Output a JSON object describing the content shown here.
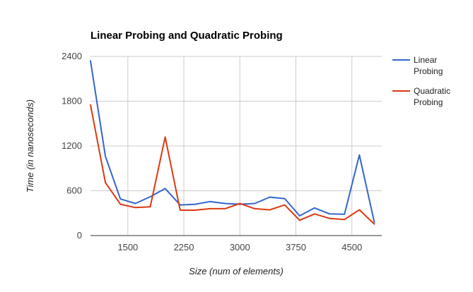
{
  "chart_data": {
    "type": "line",
    "title": "Linear Probing and Quadratic Probing",
    "xlabel": "Size (num of elements)",
    "ylabel": "Time (in nanoseconds)",
    "xlim": [
      1000,
      4900
    ],
    "ylim": [
      0,
      2400
    ],
    "x_ticks": [
      1500,
      2250,
      3000,
      3750,
      4500
    ],
    "y_ticks": [
      0,
      600,
      1200,
      1800,
      2400
    ],
    "x_tick_labels": [
      "1500",
      "2250",
      "3000",
      "3750",
      "4500"
    ],
    "y_tick_labels": [
      "0",
      "600",
      "1200",
      "1800",
      "2400"
    ],
    "grid": true,
    "legend_position": "right",
    "x": [
      1000,
      1200,
      1400,
      1600,
      1800,
      2000,
      2200,
      2400,
      2600,
      2800,
      3000,
      3200,
      3400,
      3600,
      3800,
      4000,
      4200,
      4400,
      4600,
      4800
    ],
    "series": [
      {
        "name": "Linear Probing",
        "legend_lines": [
          "Linear",
          "Probing"
        ],
        "color": "#3366cc",
        "values": [
          2340,
          1060,
          490,
          430,
          520,
          630,
          410,
          420,
          455,
          430,
          420,
          430,
          515,
          495,
          265,
          370,
          290,
          285,
          1080,
          180
        ]
      },
      {
        "name": "Quadratic Probing",
        "legend_lines": [
          "Quadratic",
          "Probing"
        ],
        "color": "#dc3912",
        "values": [
          1750,
          710,
          420,
          375,
          385,
          1320,
          340,
          340,
          360,
          360,
          430,
          360,
          345,
          410,
          205,
          290,
          230,
          215,
          345,
          155
        ]
      }
    ]
  }
}
